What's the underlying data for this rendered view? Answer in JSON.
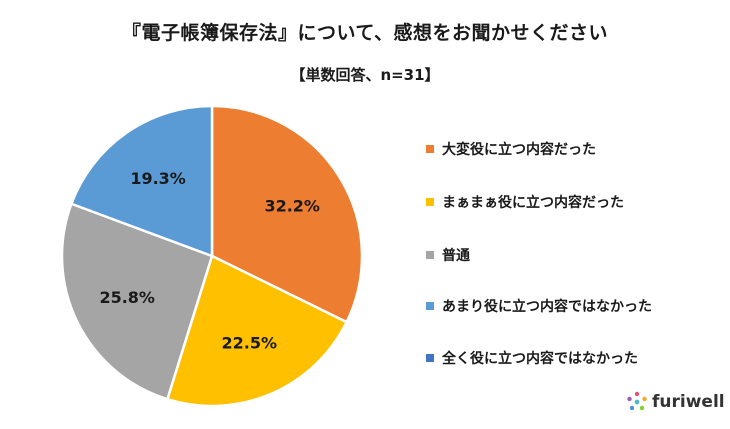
{
  "title": "『電子帳簿保存法』について、感想をお聞かせください",
  "subtitle": "【単数回答、n=31】",
  "brand": {
    "name": "furiwell",
    "icon": "furiwell-logo-icon"
  },
  "chart_data": {
    "type": "pie",
    "categories": [
      "大変役に立つ内容だった",
      "まぁまぁ役に立つ内容だった",
      "普通",
      "あまり役に立つ内容ではなかった",
      "全く役に立つ内容ではなかった"
    ],
    "values": [
      32.2,
      22.5,
      25.8,
      19.3,
      0
    ],
    "labels": [
      "32.2%",
      "22.5%",
      "25.8%",
      "19.3%",
      ""
    ],
    "unit": "%",
    "colors": [
      "#ED7D31",
      "#FFC000",
      "#A5A5A5",
      "#5B9BD5",
      "#4472C4"
    ],
    "start": "12 o'clock, clockwise",
    "legend_position": "right"
  }
}
